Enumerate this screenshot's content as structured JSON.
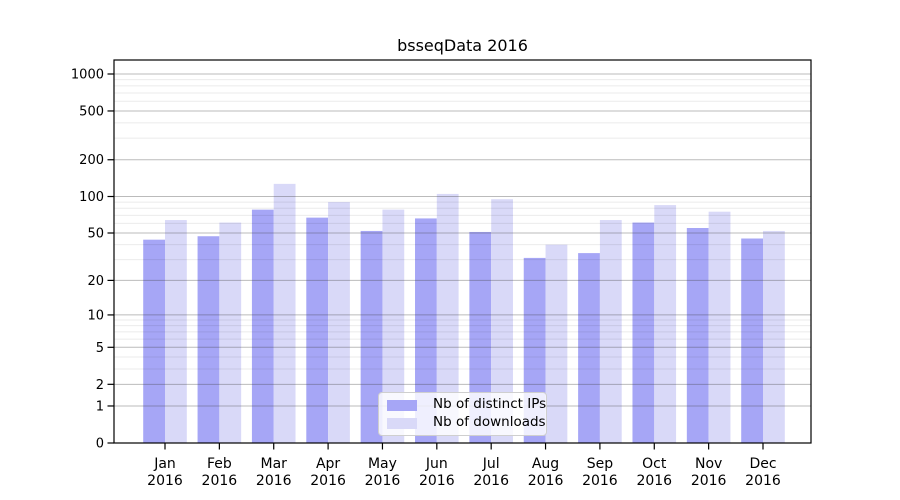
{
  "chart_data": {
    "type": "bar",
    "title": "bsseqData 2016",
    "categories": [
      "Jan",
      "Feb",
      "Mar",
      "Apr",
      "May",
      "Jun",
      "Jul",
      "Aug",
      "Sep",
      "Oct",
      "Nov",
      "Dec"
    ],
    "year": "2016",
    "series": [
      {
        "name": "Nb of distinct IPs",
        "color": "#a6a6f6",
        "values": [
          44,
          47,
          78,
          67,
          52,
          66,
          51,
          31,
          34,
          61,
          55,
          45
        ]
      },
      {
        "name": "Nb of downloads",
        "color": "#d9d9f8",
        "values": [
          64,
          61,
          127,
          90,
          78,
          105,
          95,
          40,
          64,
          85,
          75,
          52
        ]
      }
    ],
    "y_axis": {
      "scale": "log1p",
      "major_ticks": [
        0,
        1,
        2,
        5,
        10,
        20,
        50,
        100,
        200,
        500,
        1000
      ],
      "minor_ticks": [
        3,
        4,
        6,
        7,
        8,
        9,
        30,
        40,
        60,
        70,
        80,
        90,
        300,
        400,
        600,
        700,
        800,
        900
      ],
      "max": 1300
    },
    "xlabel": "",
    "ylabel": "",
    "grid": true,
    "legend_position": "lower center"
  },
  "colors": {
    "axis": "#000000",
    "grid_major": "rgba(60,60,60,0.35)",
    "grid_minor": "rgba(0,0,0,0.08)",
    "legend_border": "#cfcfcf"
  }
}
